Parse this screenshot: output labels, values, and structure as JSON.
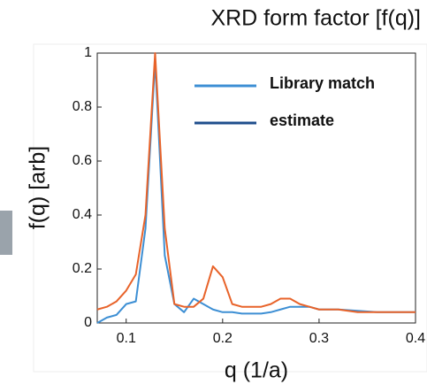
{
  "chart_data": {
    "type": "line",
    "title": "XRD form factor [f(q)]",
    "x_label": "q (1/a)",
    "y_label": "f(q) [arb]",
    "x": [
      0.07,
      0.08,
      0.09,
      0.1,
      0.11,
      0.12,
      0.13,
      0.14,
      0.15,
      0.16,
      0.17,
      0.18,
      0.19,
      0.2,
      0.21,
      0.22,
      0.23,
      0.24,
      0.25,
      0.26,
      0.27,
      0.28,
      0.29,
      0.3,
      0.32,
      0.34,
      0.36,
      0.38,
      0.4
    ],
    "series": [
      {
        "name": "Library match",
        "color": "#3d8fd4",
        "values": [
          0.0,
          0.02,
          0.03,
          0.07,
          0.08,
          0.35,
          0.97,
          0.25,
          0.07,
          0.04,
          0.09,
          0.07,
          0.05,
          0.04,
          0.04,
          0.035,
          0.035,
          0.035,
          0.04,
          0.05,
          0.06,
          0.06,
          0.06,
          0.05,
          0.05,
          0.045,
          0.04,
          0.04,
          0.04
        ]
      },
      {
        "name": "estimate",
        "color": "#e8632a",
        "legend_color": "#1f4e8c",
        "values": [
          0.05,
          0.06,
          0.08,
          0.12,
          0.18,
          0.4,
          1.0,
          0.35,
          0.07,
          0.06,
          0.06,
          0.09,
          0.21,
          0.17,
          0.07,
          0.06,
          0.06,
          0.06,
          0.07,
          0.09,
          0.09,
          0.07,
          0.06,
          0.05,
          0.05,
          0.04,
          0.04,
          0.04,
          0.04
        ]
      }
    ],
    "xlim": [
      0.07,
      0.4
    ],
    "ylim": [
      0,
      1
    ],
    "xticks": [
      0.1,
      0.2,
      0.3,
      0.4
    ],
    "yticks": [
      0,
      0.2,
      0.4,
      0.6,
      0.8,
      1
    ]
  }
}
